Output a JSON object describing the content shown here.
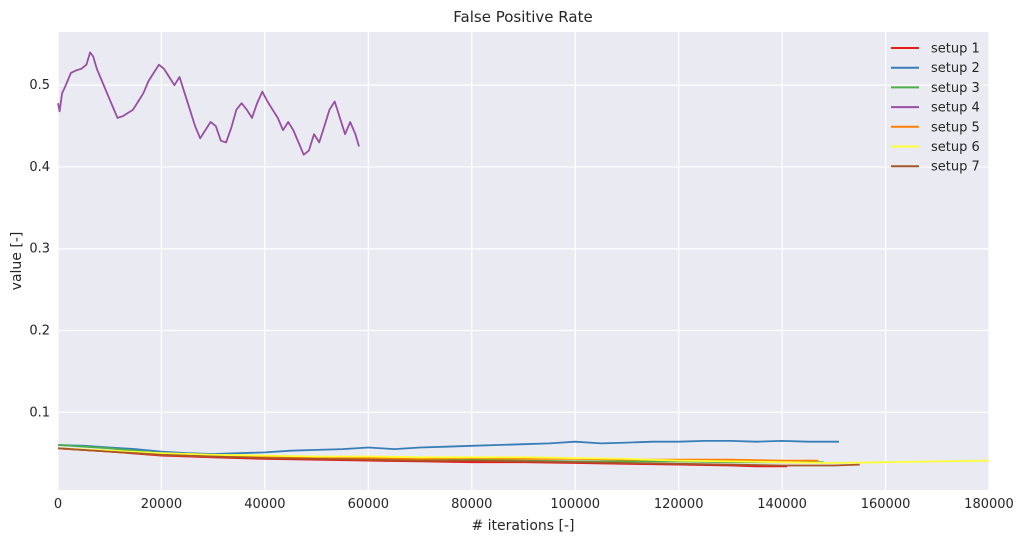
{
  "chart_data": {
    "type": "line",
    "title": "False Positive Rate",
    "xlabel": "# iterations [-]",
    "ylabel": "value [-]",
    "xlim": [
      0,
      180000
    ],
    "ylim": [
      0.005,
      0.565
    ],
    "xticks": [
      0,
      20000,
      40000,
      60000,
      80000,
      100000,
      120000,
      140000,
      160000,
      180000
    ],
    "yticks": [
      0.1,
      0.2,
      0.3,
      0.4,
      0.5
    ],
    "grid": true,
    "background": "#EAEAF2",
    "legend_position": "top-right",
    "series": [
      {
        "name": "setup 1",
        "color": "#E41A1C",
        "x": [
          0,
          10000,
          20000,
          30000,
          40000,
          50000,
          60000,
          70000,
          80000,
          90000,
          100000,
          110000,
          120000,
          130000,
          135000,
          141000
        ],
        "y": [
          0.056,
          0.052,
          0.047,
          0.045,
          0.043,
          0.042,
          0.041,
          0.04,
          0.039,
          0.039,
          0.038,
          0.037,
          0.036,
          0.035,
          0.034,
          0.034
        ]
      },
      {
        "name": "setup 2",
        "color": "#377EB8",
        "x": [
          0,
          5000,
          10000,
          15000,
          20000,
          25000,
          30000,
          35000,
          40000,
          45000,
          50000,
          55000,
          60000,
          65000,
          70000,
          75000,
          80000,
          85000,
          90000,
          95000,
          100000,
          105000,
          110000,
          115000,
          120000,
          125000,
          130000,
          135000,
          140000,
          145000,
          151000
        ],
        "y": [
          0.06,
          0.059,
          0.057,
          0.055,
          0.052,
          0.05,
          0.049,
          0.05,
          0.051,
          0.053,
          0.054,
          0.055,
          0.057,
          0.055,
          0.057,
          0.058,
          0.059,
          0.06,
          0.061,
          0.062,
          0.064,
          0.062,
          0.063,
          0.064,
          0.064,
          0.065,
          0.065,
          0.064,
          0.065,
          0.064,
          0.064
        ]
      },
      {
        "name": "setup 3",
        "color": "#4DAF4A",
        "x": [
          0,
          10000,
          20000,
          30000,
          40000,
          50000,
          60000,
          70000,
          80000,
          90000,
          100000,
          110000,
          120000,
          130000,
          140000,
          148000
        ],
        "y": [
          0.06,
          0.056,
          0.05,
          0.047,
          0.045,
          0.044,
          0.043,
          0.042,
          0.042,
          0.041,
          0.04,
          0.04,
          0.04,
          0.039,
          0.039,
          0.039
        ]
      },
      {
        "name": "setup 4",
        "color": "#984EA3",
        "x": [
          0,
          300,
          800,
          1500,
          2500,
          3500,
          4500,
          5500,
          6200,
          6800,
          7500,
          8500,
          9500,
          10500,
          11500,
          12500,
          13500,
          14500,
          15500,
          16500,
          17500,
          18500,
          19500,
          20500,
          21500,
          22500,
          23500,
          24500,
          25500,
          26500,
          27500,
          28500,
          29500,
          30500,
          31500,
          32500,
          33500,
          34500,
          35500,
          36500,
          37500,
          38500,
          39500,
          40500,
          41500,
          42500,
          43500,
          44500,
          45500,
          46500,
          47500,
          48500,
          49500,
          50500,
          51500,
          52500,
          53500,
          54500,
          55500,
          56500,
          57500,
          58200
        ],
        "y": [
          0.478,
          0.468,
          0.49,
          0.5,
          0.515,
          0.518,
          0.52,
          0.525,
          0.54,
          0.535,
          0.52,
          0.505,
          0.49,
          0.475,
          0.46,
          0.462,
          0.466,
          0.47,
          0.48,
          0.49,
          0.505,
          0.515,
          0.525,
          0.52,
          0.51,
          0.5,
          0.51,
          0.49,
          0.47,
          0.45,
          0.435,
          0.445,
          0.455,
          0.45,
          0.432,
          0.43,
          0.448,
          0.47,
          0.478,
          0.47,
          0.46,
          0.478,
          0.492,
          0.48,
          0.47,
          0.46,
          0.445,
          0.455,
          0.445,
          0.43,
          0.415,
          0.42,
          0.44,
          0.43,
          0.45,
          0.47,
          0.48,
          0.46,
          0.44,
          0.455,
          0.44,
          0.425
        ]
      },
      {
        "name": "setup 5",
        "color": "#FF7F00",
        "x": [
          0,
          10000,
          20000,
          30000,
          40000,
          50000,
          60000,
          70000,
          80000,
          90000,
          100000,
          110000,
          120000,
          130000,
          140000,
          147000
        ],
        "y": [
          0.056,
          0.052,
          0.048,
          0.046,
          0.045,
          0.044,
          0.044,
          0.043,
          0.044,
          0.043,
          0.043,
          0.042,
          0.042,
          0.042,
          0.041,
          0.041
        ]
      },
      {
        "name": "setup 6",
        "color": "#FFFF33",
        "x": [
          0,
          10000,
          20000,
          30000,
          40000,
          50000,
          60000,
          70000,
          80000,
          90000,
          100000,
          110000,
          120000,
          130000,
          140000,
          150000,
          160000,
          170000,
          180000
        ],
        "y": [
          0.056,
          0.053,
          0.05,
          0.048,
          0.047,
          0.046,
          0.046,
          0.045,
          0.045,
          0.045,
          0.044,
          0.043,
          0.041,
          0.04,
          0.039,
          0.038,
          0.039,
          0.04,
          0.041
        ]
      },
      {
        "name": "setup 7",
        "color": "#A65628",
        "x": [
          0,
          10000,
          20000,
          30000,
          40000,
          50000,
          60000,
          70000,
          80000,
          90000,
          100000,
          110000,
          120000,
          130000,
          140000,
          150000,
          155000
        ],
        "y": [
          0.056,
          0.052,
          0.048,
          0.046,
          0.044,
          0.043,
          0.042,
          0.041,
          0.041,
          0.04,
          0.039,
          0.038,
          0.037,
          0.036,
          0.035,
          0.035,
          0.036
        ]
      }
    ]
  }
}
